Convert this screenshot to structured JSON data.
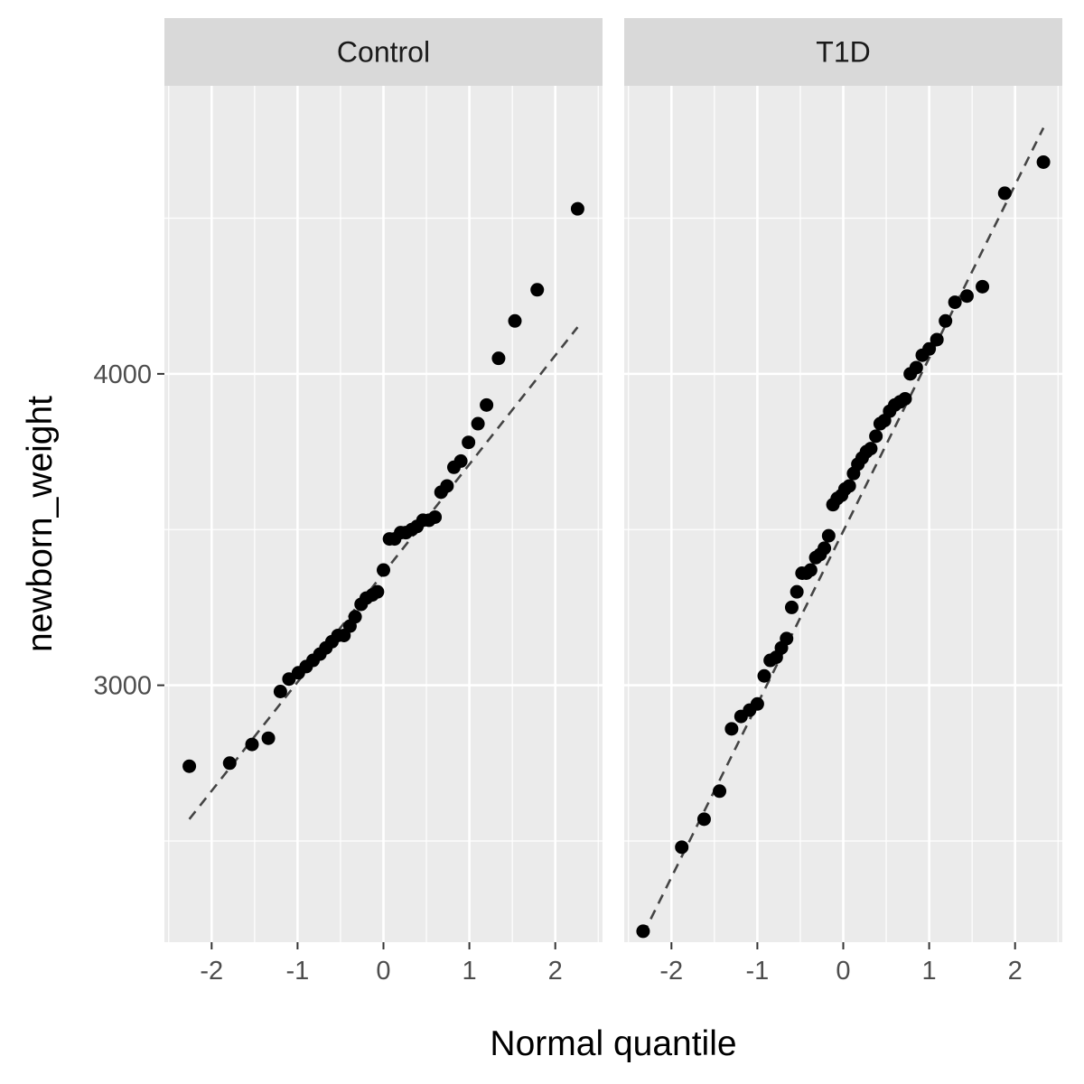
{
  "chart_data": {
    "type": "scatter",
    "subtype": "qq-plot-faceted",
    "xlabel": "Normal quantile",
    "ylabel": "newborn_weight",
    "x_ticks": [
      -2,
      -1,
      0,
      1,
      2
    ],
    "y_ticks": [
      3000,
      4000
    ],
    "xlim": [
      -2.55,
      2.55
    ],
    "ylim": [
      2175,
      4925
    ],
    "grid": true,
    "theme_colors": {
      "panel_bg": "#ebebeb",
      "strip_bg": "#d9d9d9",
      "grid": "#ffffff",
      "point": "#000000",
      "ref_line": "#444444"
    },
    "panels": [
      {
        "name": "Control",
        "points": [
          [
            -2.26,
            2740
          ],
          [
            -1.79,
            2750
          ],
          [
            -1.53,
            2810
          ],
          [
            -1.34,
            2830
          ],
          [
            -1.2,
            2980
          ],
          [
            -1.1,
            3020
          ],
          [
            -0.99,
            3040
          ],
          [
            -0.9,
            3060
          ],
          [
            -0.82,
            3080
          ],
          [
            -0.74,
            3100
          ],
          [
            -0.67,
            3120
          ],
          [
            -0.6,
            3140
          ],
          [
            -0.53,
            3160
          ],
          [
            -0.46,
            3160
          ],
          [
            -0.39,
            3190
          ],
          [
            -0.33,
            3220
          ],
          [
            -0.26,
            3260
          ],
          [
            -0.2,
            3280
          ],
          [
            -0.13,
            3290
          ],
          [
            -0.07,
            3300
          ],
          [
            0.0,
            3370
          ],
          [
            0.07,
            3470
          ],
          [
            0.13,
            3470
          ],
          [
            0.2,
            3490
          ],
          [
            0.26,
            3490
          ],
          [
            0.33,
            3500
          ],
          [
            0.39,
            3510
          ],
          [
            0.46,
            3530
          ],
          [
            0.53,
            3530
          ],
          [
            0.6,
            3540
          ],
          [
            0.67,
            3620
          ],
          [
            0.74,
            3640
          ],
          [
            0.82,
            3700
          ],
          [
            0.9,
            3720
          ],
          [
            0.99,
            3780
          ],
          [
            1.1,
            3840
          ],
          [
            1.2,
            3900
          ],
          [
            1.34,
            4050
          ],
          [
            1.53,
            4170
          ],
          [
            1.79,
            4270
          ],
          [
            2.26,
            4530
          ]
        ],
        "ref_line": [
          [
            -2.26,
            2570
          ],
          [
            2.26,
            4150
          ]
        ]
      },
      {
        "name": "T1D",
        "points": [
          [
            -2.33,
            2210
          ],
          [
            -1.88,
            2480
          ],
          [
            -1.62,
            2570
          ],
          [
            -1.44,
            2660
          ],
          [
            -1.3,
            2860
          ],
          [
            -1.19,
            2900
          ],
          [
            -1.09,
            2920
          ],
          [
            -1.0,
            2940
          ],
          [
            -0.92,
            3030
          ],
          [
            -0.85,
            3080
          ],
          [
            -0.78,
            3090
          ],
          [
            -0.72,
            3120
          ],
          [
            -0.66,
            3150
          ],
          [
            -0.6,
            3250
          ],
          [
            -0.54,
            3300
          ],
          [
            -0.48,
            3360
          ],
          [
            -0.43,
            3360
          ],
          [
            -0.38,
            3370
          ],
          [
            -0.32,
            3410
          ],
          [
            -0.27,
            3420
          ],
          [
            -0.22,
            3440
          ],
          [
            -0.17,
            3480
          ],
          [
            -0.12,
            3580
          ],
          [
            -0.07,
            3600
          ],
          [
            -0.02,
            3610
          ],
          [
            0.02,
            3630
          ],
          [
            0.07,
            3640
          ],
          [
            0.12,
            3680
          ],
          [
            0.17,
            3710
          ],
          [
            0.22,
            3730
          ],
          [
            0.27,
            3750
          ],
          [
            0.32,
            3760
          ],
          [
            0.38,
            3800
          ],
          [
            0.43,
            3840
          ],
          [
            0.48,
            3850
          ],
          [
            0.54,
            3880
          ],
          [
            0.6,
            3900
          ],
          [
            0.66,
            3910
          ],
          [
            0.72,
            3920
          ],
          [
            0.78,
            4000
          ],
          [
            0.85,
            4020
          ],
          [
            0.92,
            4060
          ],
          [
            1.0,
            4080
          ],
          [
            1.09,
            4110
          ],
          [
            1.19,
            4170
          ],
          [
            1.3,
            4230
          ],
          [
            1.44,
            4250
          ],
          [
            1.62,
            4280
          ],
          [
            1.88,
            4580
          ],
          [
            2.33,
            4680
          ]
        ],
        "ref_line": [
          [
            -2.33,
            2200
          ],
          [
            2.33,
            4790
          ]
        ]
      }
    ]
  }
}
